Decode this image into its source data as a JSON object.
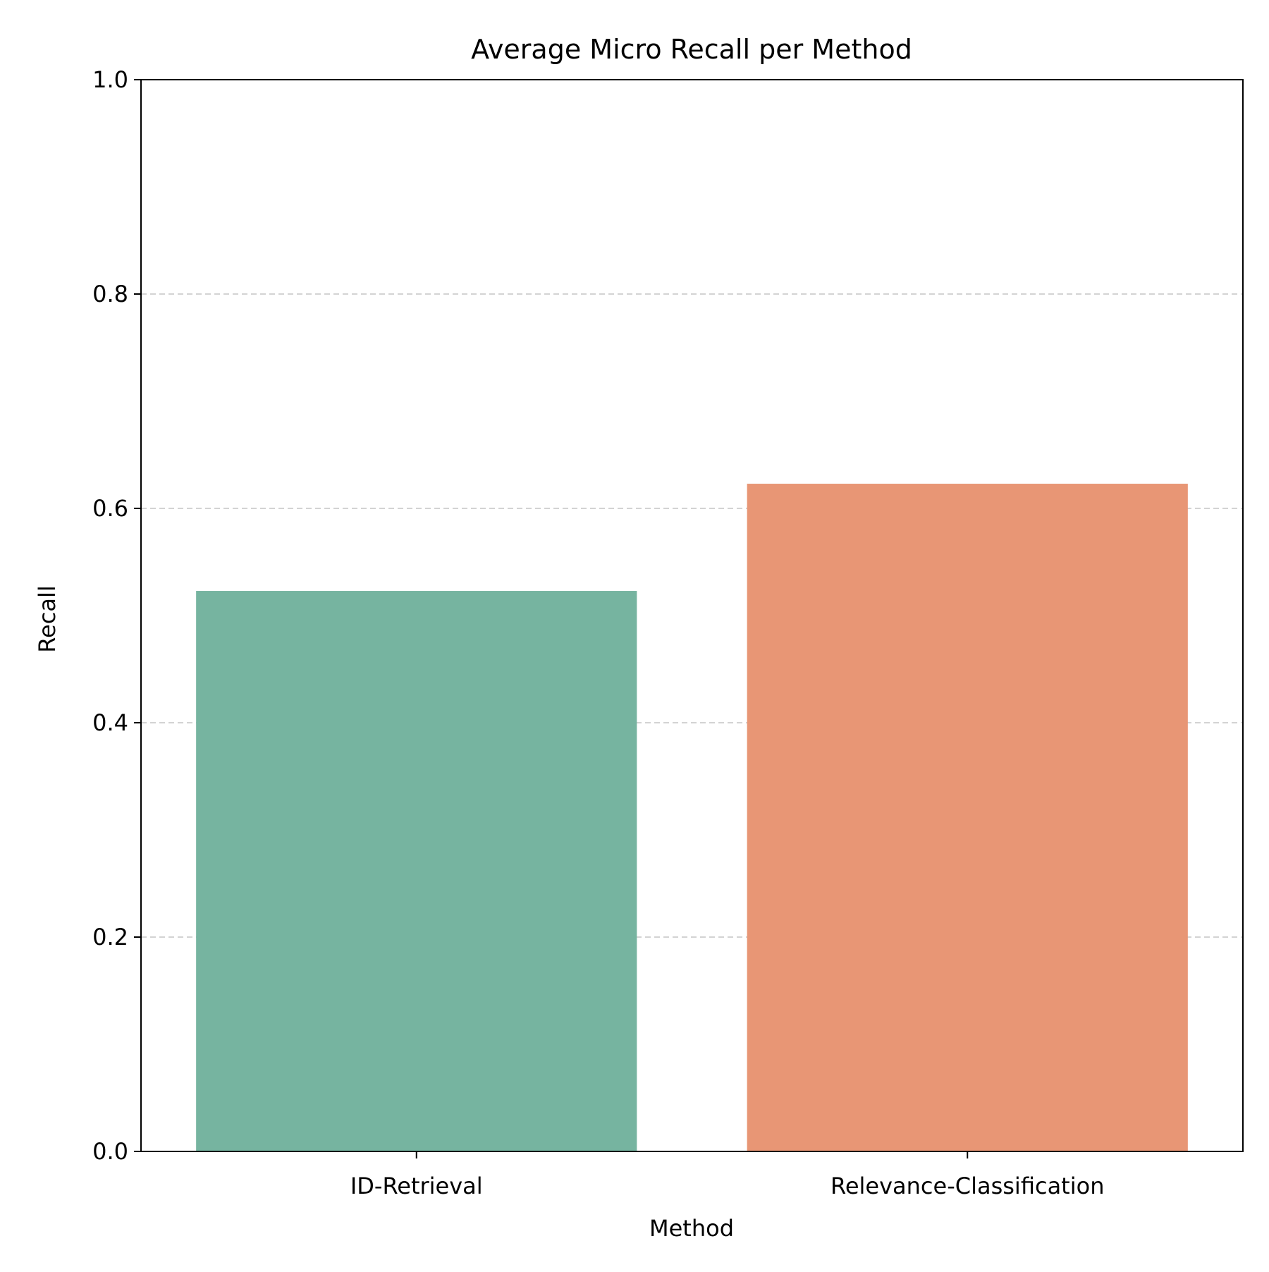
{
  "chart_data": {
    "type": "bar",
    "title": "Average Micro Recall per Method",
    "xlabel": "Method",
    "ylabel": "Recall",
    "categories": [
      "ID-Retrieval",
      "Relevance-Classification"
    ],
    "values": [
      0.523,
      0.623
    ],
    "colors": [
      "#76b4a0",
      "#e89675"
    ],
    "ylim": [
      0,
      1.0
    ],
    "yticks": [
      0.0,
      0.2,
      0.4,
      0.6,
      0.8,
      1.0
    ],
    "ytick_labels": [
      "0.0",
      "0.2",
      "0.4",
      "0.6",
      "0.8",
      "1.0"
    ],
    "grid": "y-dashed",
    "grid_color": "#d3d3d3",
    "legend": "none"
  }
}
